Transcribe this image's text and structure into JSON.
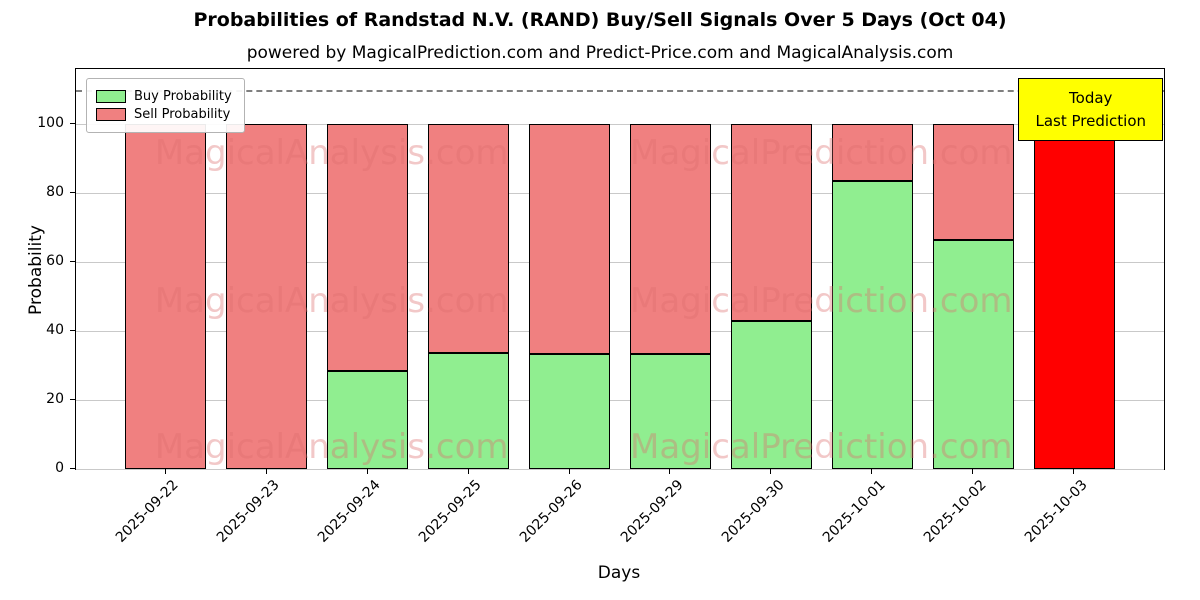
{
  "title": "Probabilities of Randstad N.V. (RAND) Buy/Sell Signals Over 5 Days (Oct 04)",
  "subtitle": "powered by MagicalPrediction.com and Predict-Price.com and MagicalAnalysis.com",
  "legend": {
    "buy_label": "Buy Probability",
    "sell_label": "Sell Probability"
  },
  "annotation": {
    "line1": "Today",
    "line2": "Last Prediction"
  },
  "watermarks": [
    "MagicalAnalysis.com",
    "MagicalPrediction.com"
  ],
  "colors": {
    "buy": "#90EE90",
    "sell": "#F08080",
    "today_bar": "#FF0000",
    "annotation_bg": "#FFFF00",
    "grid": "#c9c9c9",
    "dashed_line": "#7f7f7f"
  },
  "chart_data": {
    "type": "bar",
    "stacked": true,
    "title": "Probabilities of Randstad N.V. (RAND) Buy/Sell Signals Over 5 Days (Oct 04)",
    "xlabel": "Days",
    "ylabel": "Probability",
    "ylim": [
      0,
      116
    ],
    "yticks": [
      0,
      20,
      40,
      60,
      80,
      100
    ],
    "dashed_line_y": 110,
    "grid": true,
    "legend_position": "upper left",
    "categories": [
      "2025-09-22",
      "2025-09-23",
      "2025-09-24",
      "2025-09-25",
      "2025-09-26",
      "2025-09-29",
      "2025-09-30",
      "2025-10-01",
      "2025-10-02",
      "2025-10-03"
    ],
    "series": [
      {
        "name": "Buy Probability",
        "color": "#90EE90",
        "values": [
          0,
          0,
          28.5,
          33.5,
          33.3,
          33.3,
          43,
          83.5,
          66.5,
          0
        ]
      },
      {
        "name": "Sell Probability",
        "color": "#F08080",
        "values": [
          100,
          100,
          71.5,
          66.5,
          66.7,
          66.7,
          57,
          16.5,
          33.5,
          100
        ]
      }
    ],
    "last_bar_color": "#FF0000",
    "last_bar_note": "Today / Last Prediction"
  }
}
